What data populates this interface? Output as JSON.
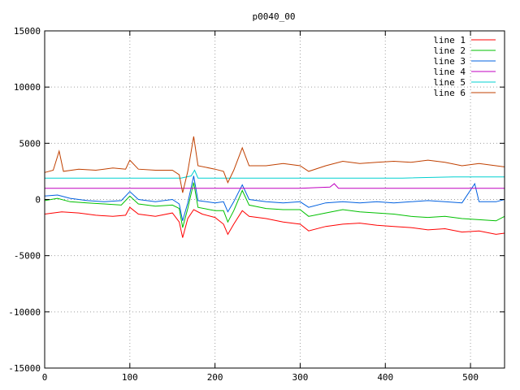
{
  "chart_data": {
    "type": "line",
    "title": "p0040_00",
    "xlabel": "",
    "ylabel": "",
    "xlim": [
      0,
      540
    ],
    "ylim": [
      -15000,
      15000
    ],
    "xticks": [
      0,
      100,
      200,
      300,
      400,
      500
    ],
    "yticks": [
      -15000,
      -10000,
      -5000,
      0,
      5000,
      10000,
      15000
    ],
    "grid": true,
    "legend_position": "top-right",
    "series": [
      {
        "name": "line 1",
        "color": "#ff0000",
        "points": [
          [
            0,
            -1300
          ],
          [
            20,
            -1100
          ],
          [
            40,
            -1200
          ],
          [
            60,
            -1400
          ],
          [
            80,
            -1500
          ],
          [
            95,
            -1400
          ],
          [
            100,
            -700
          ],
          [
            110,
            -1300
          ],
          [
            130,
            -1500
          ],
          [
            150,
            -1200
          ],
          [
            158,
            -2000
          ],
          [
            162,
            -3400
          ],
          [
            168,
            -1700
          ],
          [
            175,
            -900
          ],
          [
            185,
            -1300
          ],
          [
            200,
            -1600
          ],
          [
            210,
            -2200
          ],
          [
            215,
            -3100
          ],
          [
            222,
            -2200
          ],
          [
            232,
            -1000
          ],
          [
            240,
            -1500
          ],
          [
            260,
            -1700
          ],
          [
            280,
            -2000
          ],
          [
            300,
            -2200
          ],
          [
            310,
            -2800
          ],
          [
            330,
            -2400
          ],
          [
            350,
            -2200
          ],
          [
            370,
            -2100
          ],
          [
            390,
            -2300
          ],
          [
            410,
            -2400
          ],
          [
            430,
            -2500
          ],
          [
            450,
            -2700
          ],
          [
            470,
            -2600
          ],
          [
            490,
            -2900
          ],
          [
            510,
            -2800
          ],
          [
            530,
            -3100
          ],
          [
            540,
            -3000
          ]
        ]
      },
      {
        "name": "line 2",
        "color": "#00c000",
        "points": [
          [
            0,
            -100
          ],
          [
            15,
            100
          ],
          [
            30,
            -200
          ],
          [
            50,
            -300
          ],
          [
            70,
            -400
          ],
          [
            90,
            -500
          ],
          [
            100,
            300
          ],
          [
            110,
            -400
          ],
          [
            130,
            -600
          ],
          [
            150,
            -500
          ],
          [
            158,
            -800
          ],
          [
            162,
            -2500
          ],
          [
            168,
            -800
          ],
          [
            175,
            1500
          ],
          [
            180,
            -700
          ],
          [
            200,
            -1000
          ],
          [
            210,
            -1000
          ],
          [
            215,
            -2000
          ],
          [
            222,
            -1000
          ],
          [
            232,
            800
          ],
          [
            240,
            -500
          ],
          [
            260,
            -800
          ],
          [
            280,
            -900
          ],
          [
            300,
            -900
          ],
          [
            310,
            -1500
          ],
          [
            330,
            -1200
          ],
          [
            350,
            -900
          ],
          [
            370,
            -1100
          ],
          [
            390,
            -1200
          ],
          [
            410,
            -1300
          ],
          [
            430,
            -1500
          ],
          [
            450,
            -1600
          ],
          [
            470,
            -1500
          ],
          [
            490,
            -1700
          ],
          [
            510,
            -1800
          ],
          [
            530,
            -1900
          ],
          [
            540,
            -1500
          ]
        ]
      },
      {
        "name": "line 3",
        "color": "#0060e0",
        "points": [
          [
            0,
            300
          ],
          [
            15,
            400
          ],
          [
            30,
            100
          ],
          [
            50,
            -100
          ],
          [
            70,
            -200
          ],
          [
            90,
            -100
          ],
          [
            100,
            700
          ],
          [
            110,
            0
          ],
          [
            130,
            -200
          ],
          [
            150,
            0
          ],
          [
            158,
            -400
          ],
          [
            162,
            -1900
          ],
          [
            168,
            -300
          ],
          [
            175,
            2100
          ],
          [
            180,
            -100
          ],
          [
            200,
            -300
          ],
          [
            210,
            -200
          ],
          [
            215,
            -1100
          ],
          [
            222,
            -200
          ],
          [
            232,
            1300
          ],
          [
            240,
            0
          ],
          [
            260,
            -200
          ],
          [
            280,
            -300
          ],
          [
            300,
            -200
          ],
          [
            310,
            -700
          ],
          [
            330,
            -300
          ],
          [
            350,
            -200
          ],
          [
            370,
            -300
          ],
          [
            390,
            -200
          ],
          [
            410,
            -300
          ],
          [
            430,
            -200
          ],
          [
            450,
            -100
          ],
          [
            470,
            -200
          ],
          [
            490,
            -300
          ],
          [
            505,
            1400
          ],
          [
            510,
            -200
          ],
          [
            530,
            -200
          ],
          [
            540,
            0
          ]
        ]
      },
      {
        "name": "line 4",
        "color": "#c000c0",
        "points": [
          [
            0,
            1000
          ],
          [
            60,
            1000
          ],
          [
            120,
            1000
          ],
          [
            180,
            1000
          ],
          [
            240,
            1000
          ],
          [
            300,
            1000
          ],
          [
            335,
            1100
          ],
          [
            340,
            1400
          ],
          [
            345,
            1000
          ],
          [
            400,
            1000
          ],
          [
            460,
            1000
          ],
          [
            520,
            1000
          ],
          [
            540,
            1000
          ]
        ]
      },
      {
        "name": "line 5",
        "color": "#00d0d0",
        "points": [
          [
            0,
            1900
          ],
          [
            60,
            1900
          ],
          [
            120,
            1900
          ],
          [
            160,
            1900
          ],
          [
            172,
            2100
          ],
          [
            176,
            2600
          ],
          [
            180,
            1900
          ],
          [
            240,
            1900
          ],
          [
            300,
            1900
          ],
          [
            360,
            1900
          ],
          [
            420,
            1900
          ],
          [
            480,
            2000
          ],
          [
            540,
            2000
          ]
        ]
      },
      {
        "name": "line 6",
        "color": "#c04000",
        "points": [
          [
            0,
            2400
          ],
          [
            10,
            2600
          ],
          [
            17,
            4300
          ],
          [
            22,
            2500
          ],
          [
            40,
            2700
          ],
          [
            60,
            2600
          ],
          [
            80,
            2800
          ],
          [
            95,
            2700
          ],
          [
            100,
            3500
          ],
          [
            110,
            2700
          ],
          [
            130,
            2600
          ],
          [
            150,
            2600
          ],
          [
            158,
            2200
          ],
          [
            162,
            600
          ],
          [
            168,
            2500
          ],
          [
            175,
            5600
          ],
          [
            180,
            3000
          ],
          [
            200,
            2700
          ],
          [
            210,
            2500
          ],
          [
            215,
            1500
          ],
          [
            222,
            2600
          ],
          [
            232,
            4600
          ],
          [
            240,
            3000
          ],
          [
            260,
            3000
          ],
          [
            280,
            3200
          ],
          [
            300,
            3000
          ],
          [
            310,
            2500
          ],
          [
            330,
            3000
          ],
          [
            350,
            3400
          ],
          [
            370,
            3200
          ],
          [
            390,
            3300
          ],
          [
            410,
            3400
          ],
          [
            430,
            3300
          ],
          [
            450,
            3500
          ],
          [
            470,
            3300
          ],
          [
            490,
            3000
          ],
          [
            510,
            3200
          ],
          [
            530,
            3000
          ],
          [
            540,
            2900
          ]
        ]
      }
    ]
  }
}
